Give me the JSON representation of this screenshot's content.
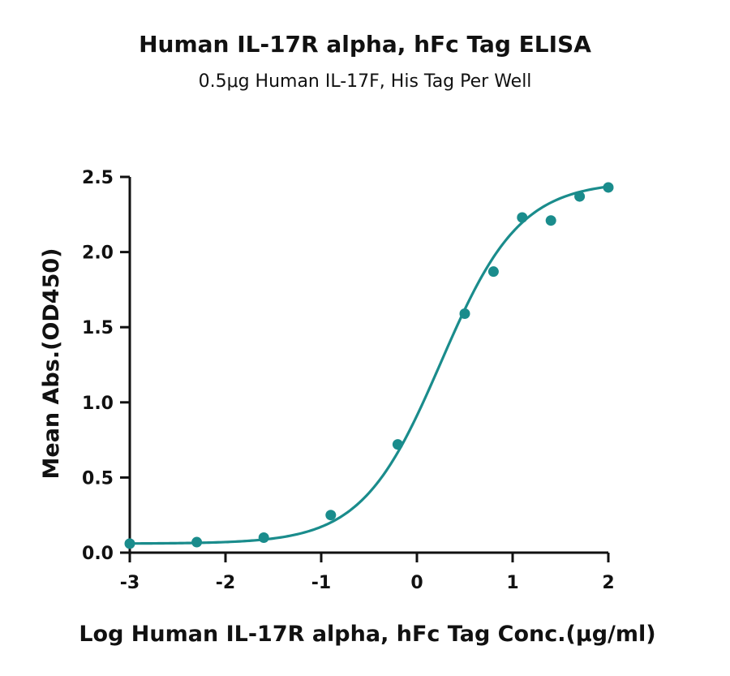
{
  "chart_data": {
    "type": "scatter",
    "title": "Human IL-17R alpha, hFc Tag ELISA",
    "subtitle": "0.5μg Human IL-17F, His Tag Per Well",
    "xlabel": "Log Human IL-17R alpha, hFc Tag Conc.(μg/ml)",
    "ylabel": "Mean Abs.(OD450)",
    "xlim": [
      -3,
      2
    ],
    "ylim": [
      0,
      2.5
    ],
    "xticks": [
      "-3",
      "-2",
      "-1",
      "0",
      "1",
      "2"
    ],
    "yticks": [
      "0.0",
      "0.5",
      "1.0",
      "1.5",
      "2.0",
      "2.5"
    ],
    "series": [
      {
        "color": "#1a8c8c",
        "points": [
          {
            "x": -3.0,
            "y": 0.06
          },
          {
            "x": -2.3,
            "y": 0.07
          },
          {
            "x": -1.6,
            "y": 0.1
          },
          {
            "x": -0.9,
            "y": 0.25
          },
          {
            "x": -0.2,
            "y": 0.72
          },
          {
            "x": 0.5,
            "y": 1.59
          },
          {
            "x": 0.8,
            "y": 1.87
          },
          {
            "x": 1.1,
            "y": 2.23
          },
          {
            "x": 1.4,
            "y": 2.21
          },
          {
            "x": 1.7,
            "y": 2.37
          },
          {
            "x": 2.0,
            "y": 2.43
          }
        ],
        "fit": {
          "model": "4PL",
          "bottom": 0.06,
          "top": 2.47,
          "logEC50": 0.25,
          "hill": 1.05
        }
      }
    ],
    "grid": false,
    "legend": "none"
  }
}
